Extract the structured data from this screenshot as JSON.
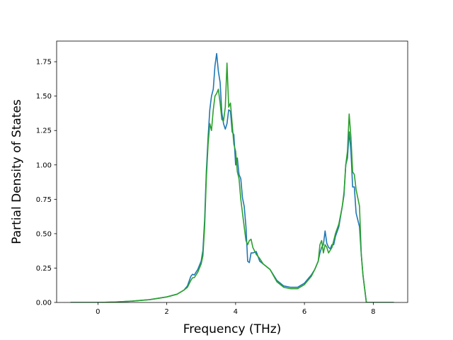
{
  "chart_data": {
    "type": "line",
    "title": "",
    "xlabel": "Frequency (THz)",
    "ylabel": "Partial Density of States",
    "xlim": [
      -1.2,
      9.0
    ],
    "ylim": [
      0.0,
      1.9
    ],
    "xticks": [
      0,
      2,
      4,
      6,
      8
    ],
    "xtick_labels": [
      "0",
      "2",
      "4",
      "6",
      "8"
    ],
    "yticks": [
      0.0,
      0.25,
      0.5,
      0.75,
      1.0,
      1.25,
      1.5,
      1.75
    ],
    "ytick_labels": [
      "0.00",
      "0.25",
      "0.50",
      "0.75",
      "1.00",
      "1.25",
      "1.50",
      "1.75"
    ],
    "grid": false,
    "legend": false,
    "series": [
      {
        "color": "#1f77b4",
        "x": [
          -0.8,
          0.0,
          0.5,
          1.0,
          1.5,
          2.0,
          2.3,
          2.5,
          2.6,
          2.7,
          2.75,
          2.8,
          2.9,
          3.0,
          3.05,
          3.1,
          3.15,
          3.2,
          3.25,
          3.3,
          3.35,
          3.4,
          3.45,
          3.5,
          3.55,
          3.6,
          3.65,
          3.7,
          3.75,
          3.8,
          3.85,
          3.9,
          3.95,
          4.0,
          4.05,
          4.1,
          4.15,
          4.2,
          4.25,
          4.3,
          4.35,
          4.4,
          4.45,
          4.5,
          4.6,
          4.7,
          4.8,
          5.0,
          5.2,
          5.4,
          5.6,
          5.8,
          6.0,
          6.2,
          6.3,
          6.4,
          6.45,
          6.5,
          6.55,
          6.6,
          6.65,
          6.7,
          6.75,
          6.8,
          6.85,
          6.9,
          7.0,
          7.1,
          7.15,
          7.2,
          7.25,
          7.3,
          7.35,
          7.4,
          7.45,
          7.5,
          7.55,
          7.6,
          7.65,
          7.7,
          7.75,
          7.8,
          7.85,
          8.0,
          8.6
        ],
        "y": [
          0.0,
          0.0,
          0.003,
          0.01,
          0.02,
          0.04,
          0.06,
          0.09,
          0.12,
          0.19,
          0.205,
          0.2,
          0.24,
          0.3,
          0.38,
          0.6,
          0.95,
          1.2,
          1.4,
          1.5,
          1.55,
          1.72,
          1.81,
          1.68,
          1.6,
          1.38,
          1.3,
          1.26,
          1.3,
          1.4,
          1.39,
          1.24,
          1.22,
          1.0,
          1.05,
          0.93,
          0.9,
          0.76,
          0.7,
          0.55,
          0.3,
          0.29,
          0.36,
          0.36,
          0.37,
          0.3,
          0.28,
          0.24,
          0.16,
          0.12,
          0.11,
          0.11,
          0.14,
          0.2,
          0.24,
          0.3,
          0.36,
          0.4,
          0.42,
          0.52,
          0.43,
          0.4,
          0.39,
          0.42,
          0.42,
          0.48,
          0.55,
          0.7,
          0.78,
          1.0,
          1.05,
          1.24,
          1.1,
          0.84,
          0.84,
          0.65,
          0.6,
          0.55,
          0.35,
          0.2,
          0.1,
          0.0,
          0.0,
          0.0,
          0.0
        ]
      },
      {
        "color": "#2ca02c",
        "x": [
          -0.8,
          0.0,
          0.5,
          1.0,
          1.5,
          2.0,
          2.3,
          2.5,
          2.6,
          2.7,
          2.75,
          2.8,
          2.9,
          3.0,
          3.05,
          3.1,
          3.15,
          3.2,
          3.25,
          3.3,
          3.35,
          3.4,
          3.45,
          3.5,
          3.55,
          3.6,
          3.65,
          3.7,
          3.75,
          3.8,
          3.85,
          3.9,
          3.95,
          4.0,
          4.05,
          4.1,
          4.15,
          4.2,
          4.25,
          4.3,
          4.35,
          4.4,
          4.45,
          4.5,
          4.6,
          4.7,
          4.8,
          5.0,
          5.2,
          5.4,
          5.6,
          5.8,
          6.0,
          6.2,
          6.3,
          6.4,
          6.45,
          6.5,
          6.55,
          6.6,
          6.65,
          6.7,
          6.75,
          6.8,
          6.85,
          6.9,
          7.0,
          7.1,
          7.15,
          7.2,
          7.25,
          7.3,
          7.35,
          7.4,
          7.45,
          7.5,
          7.55,
          7.6,
          7.65,
          7.7,
          7.75,
          7.8,
          7.85,
          8.0,
          8.6
        ],
        "y": [
          0.0,
          0.0,
          0.003,
          0.01,
          0.02,
          0.04,
          0.06,
          0.09,
          0.11,
          0.16,
          0.18,
          0.18,
          0.22,
          0.28,
          0.34,
          0.55,
          0.9,
          1.15,
          1.3,
          1.25,
          1.4,
          1.5,
          1.52,
          1.55,
          1.45,
          1.33,
          1.32,
          1.42,
          1.74,
          1.42,
          1.45,
          1.3,
          1.15,
          1.1,
          0.95,
          0.9,
          0.75,
          0.65,
          0.55,
          0.45,
          0.42,
          0.45,
          0.46,
          0.4,
          0.35,
          0.32,
          0.28,
          0.24,
          0.15,
          0.11,
          0.1,
          0.1,
          0.13,
          0.19,
          0.24,
          0.3,
          0.42,
          0.45,
          0.36,
          0.42,
          0.4,
          0.36,
          0.38,
          0.4,
          0.45,
          0.5,
          0.57,
          0.7,
          0.8,
          1.0,
          1.1,
          1.37,
          1.2,
          0.95,
          0.93,
          0.82,
          0.76,
          0.7,
          0.35,
          0.2,
          0.1,
          0.0,
          0.0,
          0.0,
          0.0
        ]
      }
    ]
  }
}
